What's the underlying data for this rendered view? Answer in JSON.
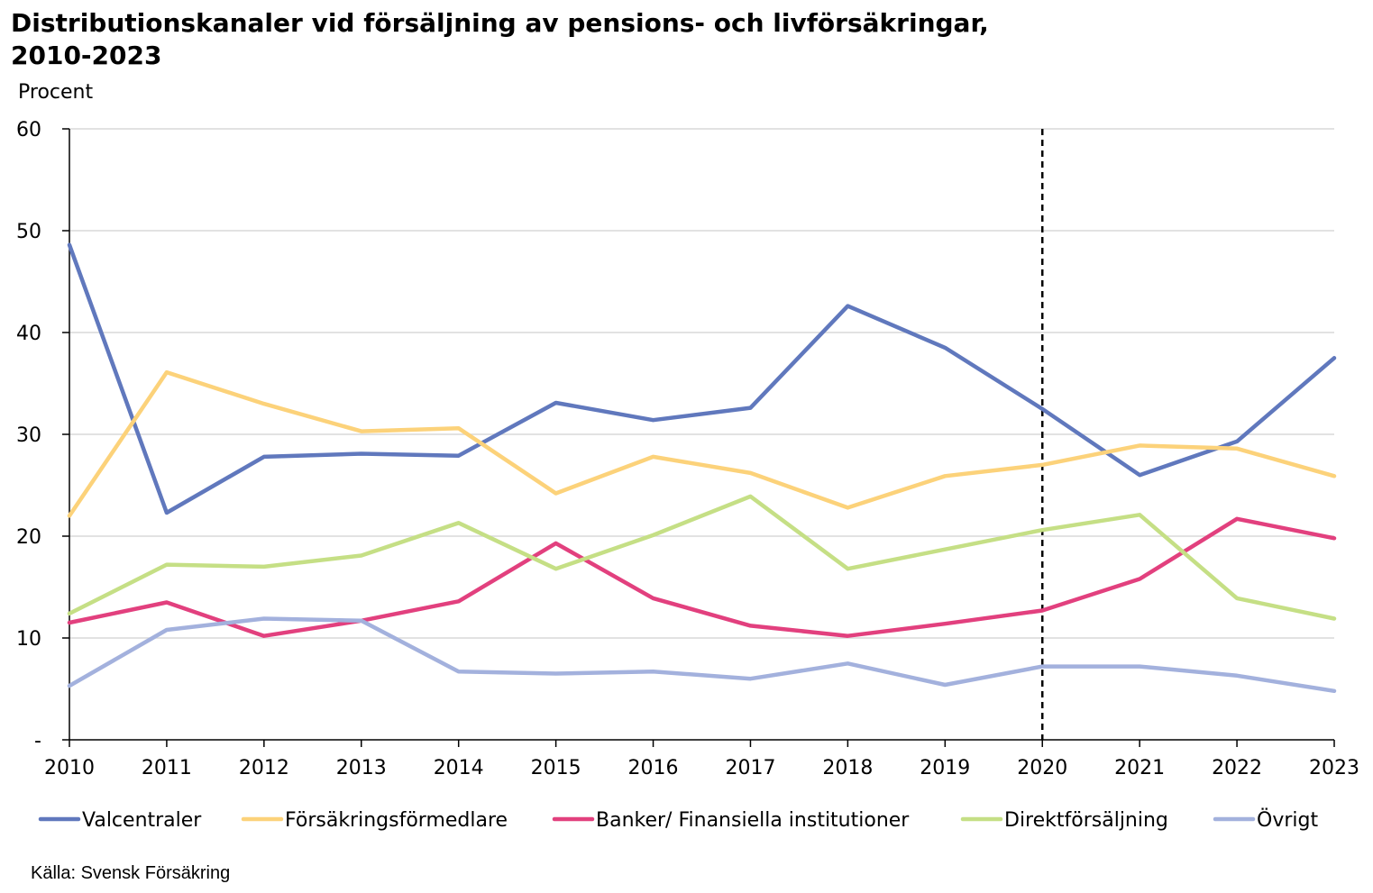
{
  "chart_data": {
    "type": "line",
    "title_line1": "Distributionskanaler vid försäljning av pensions- och livförsäkringar,",
    "title_line2": "2010-2023",
    "ylabel": "Procent",
    "source": "Källa: Svensk Försäkring",
    "x": [
      "2010",
      "2011",
      "2012",
      "2013",
      "2014",
      "2015",
      "2016",
      "2017",
      "2018",
      "2019",
      "2020",
      "2021",
      "2022",
      "2023"
    ],
    "ylim": [
      0,
      60
    ],
    "yticks": [
      "-",
      "10",
      "20",
      "30",
      "40",
      "50",
      "60"
    ],
    "grid": true,
    "reference_line_x": "2020",
    "legend_position": "bottom",
    "series": [
      {
        "name": "Valcentraler",
        "color": "#6078bd",
        "values": [
          48.6,
          22.3,
          27.8,
          28.1,
          27.9,
          33.1,
          31.4,
          32.6,
          42.6,
          38.5,
          32.5,
          26.0,
          29.3,
          37.5
        ]
      },
      {
        "name": "Försäkringsförmedlare",
        "color": "#fcd27a",
        "values": [
          22.0,
          36.1,
          33.0,
          30.3,
          30.6,
          24.2,
          27.8,
          26.2,
          22.8,
          25.9,
          27.0,
          28.9,
          28.6,
          25.9
        ]
      },
      {
        "name": "Banker/ Finansiella institutioner",
        "color": "#e2407e",
        "values": [
          11.5,
          13.5,
          10.2,
          11.7,
          13.6,
          19.3,
          13.9,
          11.2,
          10.2,
          11.4,
          12.7,
          15.8,
          21.7,
          19.8
        ]
      },
      {
        "name": "Direktförsäljning",
        "color": "#c5df85",
        "values": [
          12.4,
          17.2,
          17.0,
          18.1,
          21.3,
          16.8,
          20.1,
          23.9,
          16.8,
          18.7,
          20.6,
          22.1,
          13.9,
          11.9
        ]
      },
      {
        "name": "Övrigt",
        "color": "#a3b1dd",
        "values": [
          5.3,
          10.8,
          11.9,
          11.7,
          6.7,
          6.5,
          6.7,
          6.0,
          7.5,
          5.4,
          7.2,
          7.2,
          6.3,
          4.8
        ]
      }
    ]
  }
}
